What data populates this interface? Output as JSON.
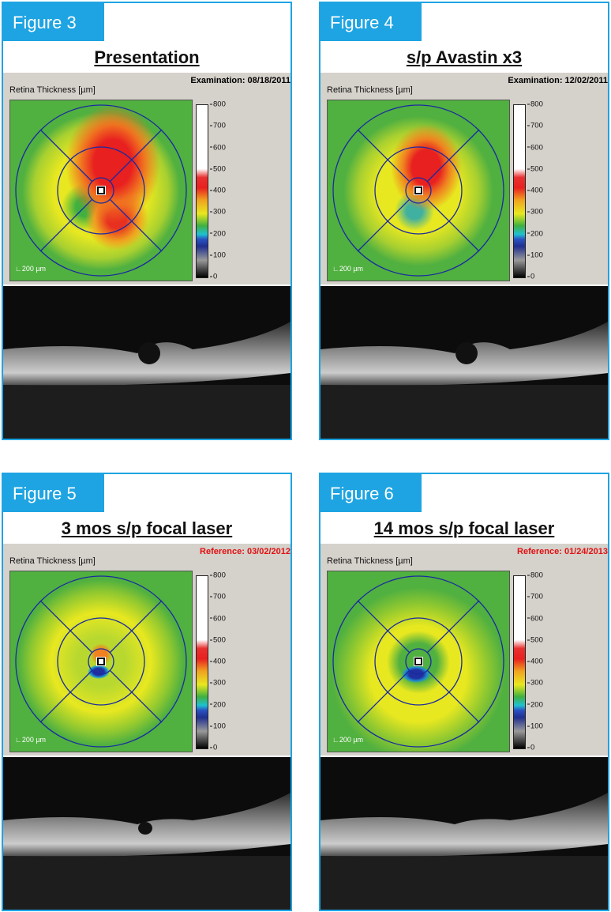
{
  "panels": [
    {
      "figure": "Figure 3",
      "title": "Presentation",
      "date_label": "Examination: 08/18/2011",
      "date_type": "exam",
      "map_label": "Retina Thickness [µm]",
      "scale_label": "200 µm",
      "state": "severe"
    },
    {
      "figure": "Figure 4",
      "title": "s/p Avastin x3",
      "date_label": "Examination: 12/02/2011",
      "date_type": "exam",
      "map_label": "Retina Thickness [µm]",
      "scale_label": "200 µm",
      "state": "moderate"
    },
    {
      "figure": "Figure 5",
      "title": "3 mos s/p focal laser",
      "date_label": "Reference: 03/02/2012",
      "date_type": "reference",
      "map_label": "Retina Thickness [µm]",
      "scale_label": "200 µm",
      "state": "mild"
    },
    {
      "figure": "Figure 6",
      "title": "14 mos s/p focal laser",
      "date_label": "Reference: 01/24/2013",
      "date_type": "reference",
      "map_label": "Retina Thickness [µm]",
      "scale_label": "200 µm",
      "state": "resolved"
    }
  ],
  "colorbar": {
    "ticks": [
      "800",
      "700",
      "600",
      "500",
      "400",
      "300",
      "200",
      "100",
      "0"
    ],
    "range": [
      0,
      800
    ],
    "unit": "µm"
  },
  "colors": {
    "accent": "#1ea4e2",
    "reference_text": "#e01010"
  }
}
